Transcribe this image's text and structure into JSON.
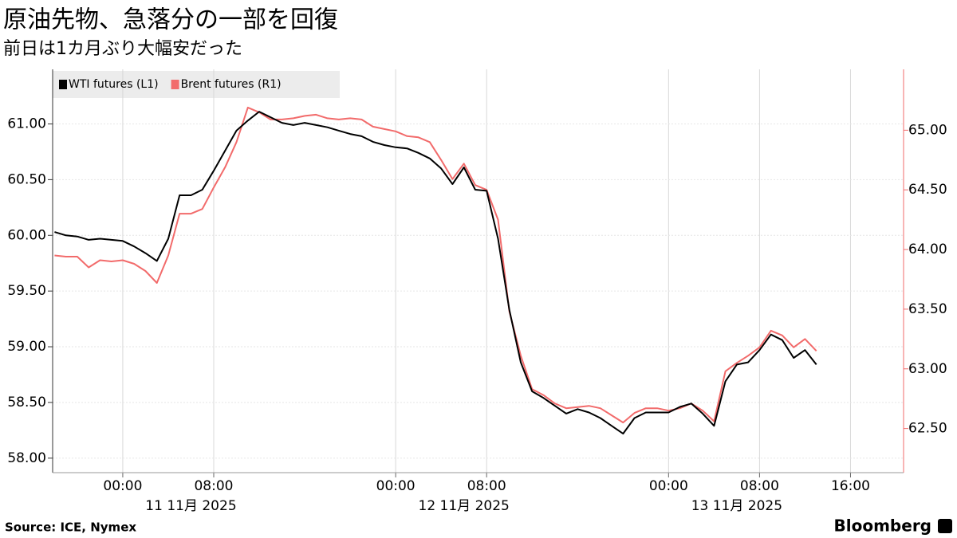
{
  "chart_data": {
    "type": "line",
    "title": "原油先物、急落分の一部を回復",
    "subtitle": "前日は1カ月ぶり大幅安だった",
    "source": "Source: ICE, Nymex",
    "brand": "Bloomberg",
    "x": [
      "2025-11-10T18:00",
      "2025-11-10T19:00",
      "2025-11-10T20:00",
      "2025-11-10T21:00",
      "2025-11-10T22:00",
      "2025-11-10T23:00",
      "2025-11-11T00:00",
      "2025-11-11T01:00",
      "2025-11-11T02:00",
      "2025-11-11T03:00",
      "2025-11-11T04:00",
      "2025-11-11T05:00",
      "2025-11-11T06:00",
      "2025-11-11T07:00",
      "2025-11-11T08:00",
      "2025-11-11T09:00",
      "2025-11-11T10:00",
      "2025-11-11T11:00",
      "2025-11-11T12:00",
      "2025-11-11T13:00",
      "2025-11-11T14:00",
      "2025-11-11T15:00",
      "2025-11-11T16:00",
      "2025-11-11T17:00",
      "2025-11-11T18:00",
      "2025-11-11T19:00",
      "2025-11-11T20:00",
      "2025-11-11T21:00",
      "2025-11-11T22:00",
      "2025-11-11T23:00",
      "2025-11-12T00:00",
      "2025-11-12T01:00",
      "2025-11-12T02:00",
      "2025-11-12T03:00",
      "2025-11-12T04:00",
      "2025-11-12T05:00",
      "2025-11-12T06:00",
      "2025-11-12T07:00",
      "2025-11-12T08:00",
      "2025-11-12T09:00",
      "2025-11-12T10:00",
      "2025-11-12T11:00",
      "2025-11-12T12:00",
      "2025-11-12T13:00",
      "2025-11-12T14:00",
      "2025-11-12T15:00",
      "2025-11-12T16:00",
      "2025-11-12T17:00",
      "2025-11-12T18:00",
      "2025-11-12T19:00",
      "2025-11-12T20:00",
      "2025-11-12T21:00",
      "2025-11-12T22:00",
      "2025-11-12T23:00",
      "2025-11-13T00:00",
      "2025-11-13T01:00",
      "2025-11-13T02:00",
      "2025-11-13T03:00",
      "2025-11-13T04:00",
      "2025-11-13T05:00",
      "2025-11-13T06:00",
      "2025-11-13T07:00",
      "2025-11-13T08:00",
      "2025-11-13T09:00",
      "2025-11-13T10:00",
      "2025-11-13T11:00",
      "2025-11-13T12:00",
      "2025-11-13T13:00"
    ],
    "series": [
      {
        "name": "WTI futures (L1)",
        "color": "#000000",
        "axis": "y",
        "values": [
          60.03,
          60.0,
          59.99,
          59.96,
          59.97,
          59.96,
          59.95,
          59.9,
          59.84,
          59.77,
          59.97,
          60.36,
          60.36,
          60.41,
          60.58,
          60.76,
          60.94,
          61.03,
          61.11,
          61.06,
          61.01,
          60.99,
          61.01,
          60.99,
          60.97,
          60.94,
          60.91,
          60.89,
          60.84,
          60.81,
          60.79,
          60.78,
          60.74,
          60.69,
          60.6,
          60.46,
          60.61,
          60.41,
          60.4,
          59.97,
          59.33,
          58.86,
          58.6,
          58.54,
          58.47,
          58.4,
          58.44,
          58.41,
          58.36,
          58.29,
          58.22,
          58.36,
          58.41,
          58.41,
          58.41,
          58.46,
          58.49,
          58.4,
          58.29,
          58.69,
          58.84,
          58.86,
          58.97,
          59.11,
          59.06,
          58.9,
          58.97,
          58.84
        ]
      },
      {
        "name": "Brent futures (R1)",
        "color": "#f26b6b",
        "axis": "y2",
        "values": [
          63.95,
          63.94,
          63.94,
          63.85,
          63.91,
          63.9,
          63.91,
          63.88,
          63.82,
          63.72,
          63.95,
          64.3,
          64.3,
          64.34,
          64.52,
          64.69,
          64.9,
          65.19,
          65.15,
          65.09,
          65.09,
          65.1,
          65.12,
          65.13,
          65.1,
          65.09,
          65.1,
          65.09,
          65.03,
          65.01,
          64.99,
          64.95,
          64.94,
          64.9,
          64.75,
          64.59,
          64.72,
          64.54,
          64.5,
          64.25,
          63.48,
          63.11,
          62.83,
          62.78,
          62.71,
          62.67,
          62.68,
          62.69,
          62.67,
          62.61,
          62.55,
          62.63,
          62.67,
          62.67,
          62.65,
          62.67,
          62.71,
          62.65,
          62.56,
          62.98,
          63.05,
          63.11,
          63.18,
          63.32,
          63.28,
          63.18,
          63.25,
          63.15
        ]
      }
    ],
    "xlim": [
      "2025-11-10T17:50",
      "2025-11-13T20:40"
    ],
    "xticks": [
      {
        "value": "2025-11-11T00:00",
        "label": "00:00"
      },
      {
        "value": "2025-11-11T08:00",
        "label": "08:00"
      },
      {
        "value": "2025-11-12T00:00",
        "label": "00:00"
      },
      {
        "value": "2025-11-12T08:00",
        "label": "08:00"
      },
      {
        "value": "2025-11-13T00:00",
        "label": "00:00"
      },
      {
        "value": "2025-11-13T08:00",
        "label": "08:00"
      },
      {
        "value": "2025-11-13T16:00",
        "label": "16:00"
      }
    ],
    "xdates": [
      {
        "value": "2025-11-11",
        "label": "11 11月 2025"
      },
      {
        "value": "2025-11-12",
        "label": "12 11月 2025"
      },
      {
        "value": "2025-11-13",
        "label": "13 11月 2025"
      }
    ],
    "ylim": [
      57.87,
      61.49
    ],
    "yticks": [
      {
        "value": 58,
        "label": "58.00"
      },
      {
        "value": 58.5,
        "label": "58.50"
      },
      {
        "value": 59,
        "label": "59.00"
      },
      {
        "value": 59.5,
        "label": "59.50"
      },
      {
        "value": 60,
        "label": "60.00"
      },
      {
        "value": 60.5,
        "label": "60.50"
      },
      {
        "value": 61,
        "label": "61.00"
      }
    ],
    "y2lim": [
      62.13,
      65.51
    ],
    "y2ticks": [
      {
        "value": 62.5,
        "label": "62.50"
      },
      {
        "value": 63,
        "label": "63.00"
      },
      {
        "value": 63.5,
        "label": "63.50"
      },
      {
        "value": 64,
        "label": "64.00"
      },
      {
        "value": 64.5,
        "label": "64.50"
      },
      {
        "value": 65,
        "label": "65.00"
      }
    ],
    "y2color": "#f26b6b",
    "grid": true
  }
}
